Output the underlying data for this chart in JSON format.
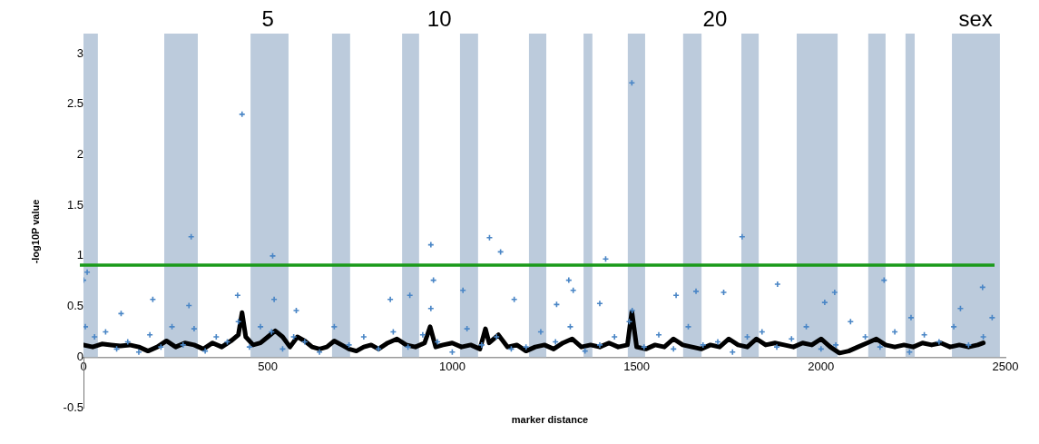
{
  "chart_data": {
    "type": "scatter",
    "xlabel": "marker distance",
    "ylabel": "-log10P value",
    "xlim": [
      0,
      2500
    ],
    "xticks": [
      0,
      500,
      1000,
      1500,
      2000,
      2500
    ],
    "ylim": [
      -0.5,
      3
    ],
    "yticks": [
      -0.5,
      0,
      0.5,
      1,
      1.5,
      2,
      2.5,
      3
    ],
    "grid": false,
    "legend": false,
    "marker": "cross",
    "annotations": [
      "5",
      "10",
      "20",
      "sex"
    ],
    "ref_lines": [
      {
        "axis": "y",
        "value": 0.91,
        "color": "#1a9a1a"
      }
    ],
    "bands": [
      {
        "axis": "x",
        "from": 0,
        "to": 39,
        "color": "#bccbdc"
      },
      {
        "axis": "x",
        "from": 219,
        "to": 310,
        "color": "#bccbdc"
      },
      {
        "axis": "x",
        "from": 453,
        "to": 556,
        "color": "#bccbdc"
      },
      {
        "axis": "x",
        "from": 674,
        "to": 723,
        "color": "#bccbdc"
      },
      {
        "axis": "x",
        "from": 864,
        "to": 910,
        "color": "#bccbdc"
      },
      {
        "axis": "x",
        "from": 1021,
        "to": 1070,
        "color": "#bccbdc"
      },
      {
        "axis": "x",
        "from": 1208,
        "to": 1255,
        "color": "#bccbdc"
      },
      {
        "axis": "x",
        "from": 1356,
        "to": 1380,
        "color": "#bccbdc"
      },
      {
        "axis": "x",
        "from": 1476,
        "to": 1523,
        "color": "#bccbdc"
      },
      {
        "axis": "x",
        "from": 1626,
        "to": 1676,
        "color": "#bccbdc"
      },
      {
        "axis": "x",
        "from": 1784,
        "to": 1831,
        "color": "#bccbdc"
      },
      {
        "axis": "x",
        "from": 1934,
        "to": 2045,
        "color": "#bccbdc"
      },
      {
        "axis": "x",
        "from": 2128,
        "to": 2175,
        "color": "#bccbdc"
      },
      {
        "axis": "x",
        "from": 2229,
        "to": 2254,
        "color": "#bccbdc"
      },
      {
        "axis": "x",
        "from": 2355,
        "to": 2485,
        "color": "#bccbdc"
      }
    ],
    "series": [
      {
        "type": "line",
        "color": "#000000",
        "marker": "none",
        "x": [
          0,
          25,
          50,
          75,
          100,
          125,
          150,
          175,
          200,
          225,
          250,
          275,
          300,
          325,
          350,
          375,
          400,
          420,
          430,
          440,
          460,
          480,
          500,
          520,
          540,
          560,
          580,
          600,
          620,
          640,
          660,
          680,
          700,
          720,
          740,
          760,
          780,
          800,
          825,
          850,
          875,
          900,
          925,
          940,
          955,
          975,
          1000,
          1025,
          1050,
          1075,
          1090,
          1100,
          1125,
          1150,
          1175,
          1200,
          1225,
          1250,
          1275,
          1300,
          1325,
          1350,
          1375,
          1400,
          1425,
          1450,
          1475,
          1487,
          1500,
          1525,
          1550,
          1575,
          1600,
          1625,
          1650,
          1675,
          1700,
          1725,
          1750,
          1775,
          1800,
          1825,
          1850,
          1875,
          1900,
          1925,
          1950,
          1975,
          2000,
          2025,
          2050,
          2075,
          2100,
          2125,
          2150,
          2175,
          2200,
          2225,
          2250,
          2275,
          2300,
          2325,
          2350,
          2375,
          2400,
          2425,
          2440
        ],
        "values": [
          0.12,
          0.1,
          0.13,
          0.12,
          0.11,
          0.12,
          0.1,
          0.06,
          0.1,
          0.16,
          0.1,
          0.14,
          0.12,
          0.08,
          0.14,
          0.1,
          0.16,
          0.22,
          0.44,
          0.2,
          0.12,
          0.14,
          0.2,
          0.26,
          0.2,
          0.1,
          0.2,
          0.16,
          0.1,
          0.08,
          0.1,
          0.16,
          0.12,
          0.08,
          0.06,
          0.1,
          0.12,
          0.08,
          0.14,
          0.18,
          0.12,
          0.1,
          0.14,
          0.3,
          0.1,
          0.12,
          0.14,
          0.1,
          0.12,
          0.08,
          0.28,
          0.14,
          0.22,
          0.1,
          0.12,
          0.06,
          0.1,
          0.12,
          0.08,
          0.14,
          0.18,
          0.1,
          0.12,
          0.1,
          0.14,
          0.1,
          0.12,
          0.45,
          0.1,
          0.08,
          0.12,
          0.1,
          0.18,
          0.12,
          0.1,
          0.08,
          0.12,
          0.1,
          0.18,
          0.12,
          0.1,
          0.18,
          0.12,
          0.14,
          0.12,
          0.1,
          0.14,
          0.12,
          0.18,
          0.1,
          0.04,
          0.06,
          0.1,
          0.14,
          0.18,
          0.12,
          0.1,
          0.12,
          0.1,
          0.14,
          0.12,
          0.14,
          0.1,
          0.12,
          0.1,
          0.12,
          0.14
        ]
      },
      {
        "color": "#4a86c6",
        "x": [
          430,
          292,
          513,
          1487,
          942,
          1101,
          1131,
          1416,
          1786,
          0,
          10,
          188,
          286,
          418,
          517,
          832,
          885,
          949,
          1029,
          1168,
          942,
          577,
          102,
          1316,
          1328,
          1283,
          1400,
          1607,
          1661,
          1736,
          1882,
          2010,
          2037,
          2171,
          2438,
          2378,
          1488,
          2464,
          2244,
          5,
          30,
          60,
          90,
          120,
          150,
          180,
          210,
          240,
          270,
          300,
          330,
          360,
          390,
          420,
          450,
          480,
          510,
          540,
          570,
          600,
          640,
          680,
          720,
          760,
          800,
          840,
          880,
          920,
          960,
          1000,
          1040,
          1080,
          1120,
          1160,
          1200,
          1240,
          1280,
          1320,
          1360,
          1400,
          1440,
          1480,
          1520,
          1560,
          1600,
          1640,
          1680,
          1720,
          1760,
          1800,
          1840,
          1880,
          1920,
          1960,
          2000,
          2040,
          2080,
          2120,
          2160,
          2200,
          2240,
          2280,
          2320,
          2360,
          2400,
          2440
        ],
        "values": [
          2.4,
          1.19,
          1.0,
          2.71,
          1.11,
          1.18,
          1.04,
          0.97,
          1.19,
          0.76,
          0.84,
          0.57,
          0.51,
          0.61,
          0.57,
          0.57,
          0.61,
          0.76,
          0.66,
          0.57,
          0.48,
          0.46,
          0.43,
          0.76,
          0.66,
          0.52,
          0.53,
          0.61,
          0.65,
          0.64,
          0.72,
          0.54,
          0.64,
          0.76,
          0.69,
          0.48,
          0.46,
          0.39,
          0.39,
          0.3,
          0.2,
          0.25,
          0.08,
          0.15,
          0.05,
          0.22,
          0.1,
          0.3,
          0.12,
          0.28,
          0.06,
          0.2,
          0.15,
          0.35,
          0.1,
          0.3,
          0.25,
          0.08,
          0.2,
          0.15,
          0.05,
          0.3,
          0.12,
          0.2,
          0.08,
          0.25,
          0.1,
          0.22,
          0.15,
          0.05,
          0.28,
          0.12,
          0.2,
          0.08,
          0.1,
          0.25,
          0.15,
          0.3,
          0.06,
          0.12,
          0.2,
          0.35,
          0.1,
          0.22,
          0.08,
          0.3,
          0.12,
          0.15,
          0.05,
          0.2,
          0.25,
          0.1,
          0.18,
          0.3,
          0.08,
          0.12,
          0.35,
          0.2,
          0.1,
          0.25,
          0.05,
          0.22,
          0.15,
          0.3,
          0.12,
          0.2
        ]
      }
    ]
  }
}
